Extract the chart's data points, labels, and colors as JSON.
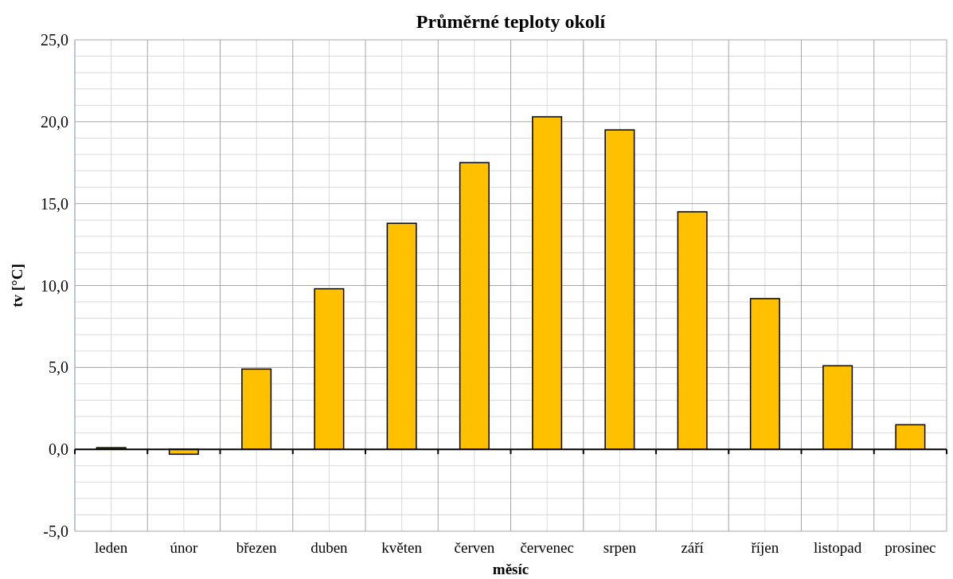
{
  "chart_data": {
    "type": "bar",
    "title": "Průměrné teploty okolí",
    "xlabel": "měsíc",
    "ylabel": "tv [°C]",
    "categories": [
      "leden",
      "únor",
      "březen",
      "duben",
      "květen",
      "červen",
      "červenec",
      "srpen",
      "září",
      "říjen",
      "listopad",
      "prosinec"
    ],
    "values": [
      0.1,
      -0.3,
      4.9,
      9.8,
      13.8,
      17.5,
      20.3,
      19.5,
      14.5,
      9.2,
      5.1,
      1.5
    ],
    "color": "#ffc000",
    "ylim": [
      -5,
      25
    ],
    "yticks": [
      {
        "value": -5,
        "label": "-5,0"
      },
      {
        "value": 0,
        "label": "0,0"
      },
      {
        "value": 5,
        "label": "5,0"
      },
      {
        "value": 10,
        "label": "10,0"
      },
      {
        "value": 15,
        "label": "15,0"
      },
      {
        "value": 20,
        "label": "20,0"
      },
      {
        "value": 25,
        "label": "25,0"
      }
    ],
    "grid": true
  }
}
